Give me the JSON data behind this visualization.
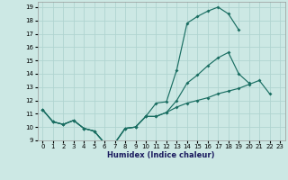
{
  "xlabel": "Humidex (Indice chaleur)",
  "bg_color": "#cce8e4",
  "grid_color": "#b0d4d0",
  "line_color": "#1a6e62",
  "xlim": [
    -0.5,
    23.5
  ],
  "ylim": [
    9,
    19.4
  ],
  "xticks": [
    0,
    1,
    2,
    3,
    4,
    5,
    6,
    7,
    8,
    9,
    10,
    11,
    12,
    13,
    14,
    15,
    16,
    17,
    18,
    19,
    20,
    21,
    22,
    23
  ],
  "yticks": [
    9,
    10,
    11,
    12,
    13,
    14,
    15,
    16,
    17,
    18,
    19
  ],
  "line1_x": [
    0,
    1,
    2,
    3,
    4,
    5,
    6,
    7,
    8,
    9,
    10,
    11,
    12,
    13,
    14,
    15,
    16,
    17,
    18,
    19
  ],
  "line1_y": [
    11.3,
    10.4,
    10.2,
    10.5,
    9.9,
    9.7,
    8.8,
    8.8,
    9.9,
    10.0,
    10.8,
    11.8,
    11.9,
    14.3,
    17.8,
    18.3,
    18.7,
    19.0,
    18.5,
    17.3
  ],
  "line2_x": [
    0,
    1,
    2,
    3,
    4,
    5,
    6,
    7,
    8,
    9,
    10,
    11,
    12,
    13,
    14,
    15,
    16,
    17,
    18,
    19,
    20
  ],
  "line2_y": [
    11.3,
    10.4,
    10.2,
    10.5,
    9.9,
    9.7,
    8.8,
    8.8,
    9.9,
    10.0,
    10.8,
    10.8,
    11.1,
    12.0,
    13.3,
    13.9,
    14.6,
    15.2,
    15.6,
    14.0,
    13.3
  ],
  "line3_x": [
    0,
    1,
    2,
    3,
    4,
    5,
    6,
    7,
    8,
    9,
    10,
    11,
    12,
    13,
    14,
    15,
    16,
    17,
    18,
    19,
    20,
    21,
    22
  ],
  "line3_y": [
    11.3,
    10.4,
    10.2,
    10.5,
    9.9,
    9.7,
    8.8,
    8.8,
    9.9,
    10.0,
    10.8,
    10.8,
    11.1,
    11.5,
    11.8,
    12.0,
    12.2,
    12.5,
    12.7,
    12.9,
    13.2,
    13.5,
    12.5
  ]
}
